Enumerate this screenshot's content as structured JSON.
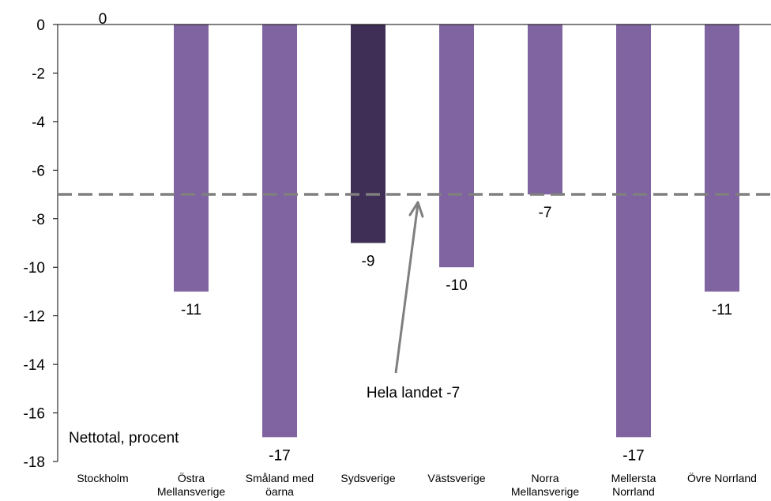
{
  "chart_data": {
    "type": "bar",
    "title": "",
    "xlabel": "",
    "ylabel": "",
    "note": "Nettotal, procent",
    "ylim": [
      -18,
      0
    ],
    "yticks": [
      "0",
      "-2",
      "-4",
      "-6",
      "-8",
      "-10",
      "-12",
      "-14",
      "-16",
      "-18"
    ],
    "categories": [
      [
        "Stockholm"
      ],
      [
        "Östra",
        "Mellansverige"
      ],
      [
        "Småland med",
        "öarna"
      ],
      [
        "Sydsverige"
      ],
      [
        "Västsverige"
      ],
      [
        "Norra",
        "Mellansverige"
      ],
      [
        "Mellersta",
        "Norrland"
      ],
      [
        "Övre Norrland"
      ]
    ],
    "values": [
      0,
      -11,
      -17,
      -9,
      -10,
      -7,
      -17,
      -11
    ],
    "value_labels": [
      "0",
      "-11",
      "-17",
      "-9",
      "-10",
      "-7",
      "-17",
      "-11"
    ],
    "highlight_index": 3,
    "colors": {
      "bar": "#8064a2",
      "highlight": "#3f2e55",
      "reference": "#7f7f7f",
      "axis": "#000000"
    },
    "reference_line": {
      "value": -7,
      "label": "Hela landet -7"
    },
    "grid": false
  }
}
